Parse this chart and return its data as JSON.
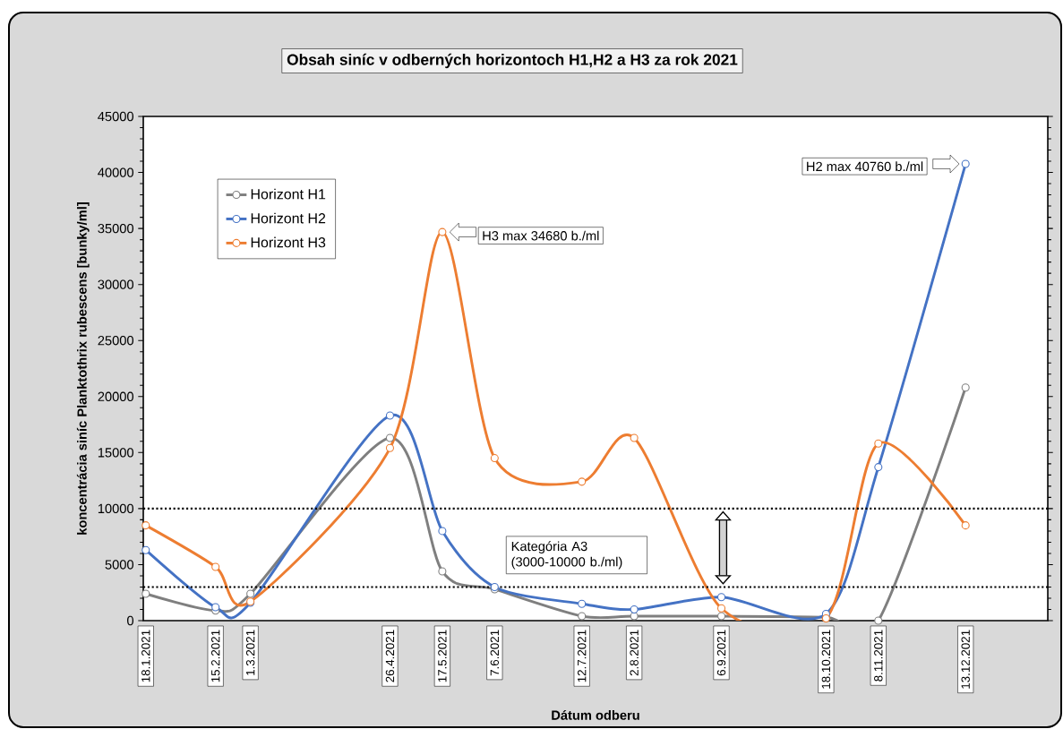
{
  "chart_data": {
    "type": "line",
    "title": "Obsah siníc v odberných horizontoch H1,H2 a H3 za rok 2021",
    "xlabel": "Dátum odberu",
    "ylabel": "koncentrácia siníc Planktothrix rubescens  [bunky/ml]",
    "x": [
      "2021-01-18",
      "2021-02-15",
      "2021-03-01",
      "2021-04-26",
      "2021-05-17",
      "2021-06-07",
      "2021-07-12",
      "2021-08-02",
      "2021-09-06",
      "2021-10-18",
      "2021-11-08",
      "2021-12-13"
    ],
    "series": [
      {
        "name": "Horizont H1",
        "color": "#7f7f7f",
        "values": [
          2400,
          900,
          2400,
          16300,
          4400,
          2800,
          400,
          400,
          400,
          300,
          0,
          20800
        ]
      },
      {
        "name": "Horizont H2",
        "color": "#4472c4",
        "values": [
          6300,
          1200,
          1600,
          18300,
          8000,
          3000,
          1500,
          1000,
          2100,
          600,
          13700,
          40760
        ]
      },
      {
        "name": "Horizont H3",
        "color": "#ed7d31",
        "values": [
          8500,
          4800,
          1700,
          15400,
          34680,
          14500,
          12400,
          16300,
          1100,
          200,
          15800,
          8500
        ]
      }
    ],
    "xlim": [
      "2021-01-17",
      "2022-01-15"
    ],
    "xticks": [
      {
        "value": "2021-01-18",
        "label": "18.1.2021"
      },
      {
        "value": "2021-02-15",
        "label": "15.2.2021"
      },
      {
        "value": "2021-03-01",
        "label": "1.3.2021"
      },
      {
        "value": "2021-04-26",
        "label": "26.4.2021"
      },
      {
        "value": "2021-05-17",
        "label": "17.5.2021"
      },
      {
        "value": "2021-06-07",
        "label": "7.6.2021"
      },
      {
        "value": "2021-07-12",
        "label": "12.7.2021"
      },
      {
        "value": "2021-08-02",
        "label": "2.8.2021"
      },
      {
        "value": "2021-09-06",
        "label": "6.9.2021"
      },
      {
        "value": "2021-10-18",
        "label": "18.10.2021"
      },
      {
        "value": "2021-11-08",
        "label": "8.11.2021"
      },
      {
        "value": "2021-12-13",
        "label": "13.12.2021"
      }
    ],
    "ylim": [
      0,
      45000
    ],
    "yticks": [
      0,
      5000,
      10000,
      15000,
      20000,
      25000,
      30000,
      35000,
      40000,
      45000
    ],
    "ref_lines": [
      {
        "axis": "y",
        "value": 10000,
        "line_style": "dotted"
      },
      {
        "axis": "y",
        "value": 3000,
        "line_style": "dotted"
      }
    ],
    "annotations": [
      "H3 max 34680 b./ml",
      "H2 max 40760 b./ml",
      "Kategória A3 (3000-10000 b./ml)"
    ],
    "legend": "top left",
    "marker": "circle",
    "line_style": "solid",
    "grid": false
  }
}
